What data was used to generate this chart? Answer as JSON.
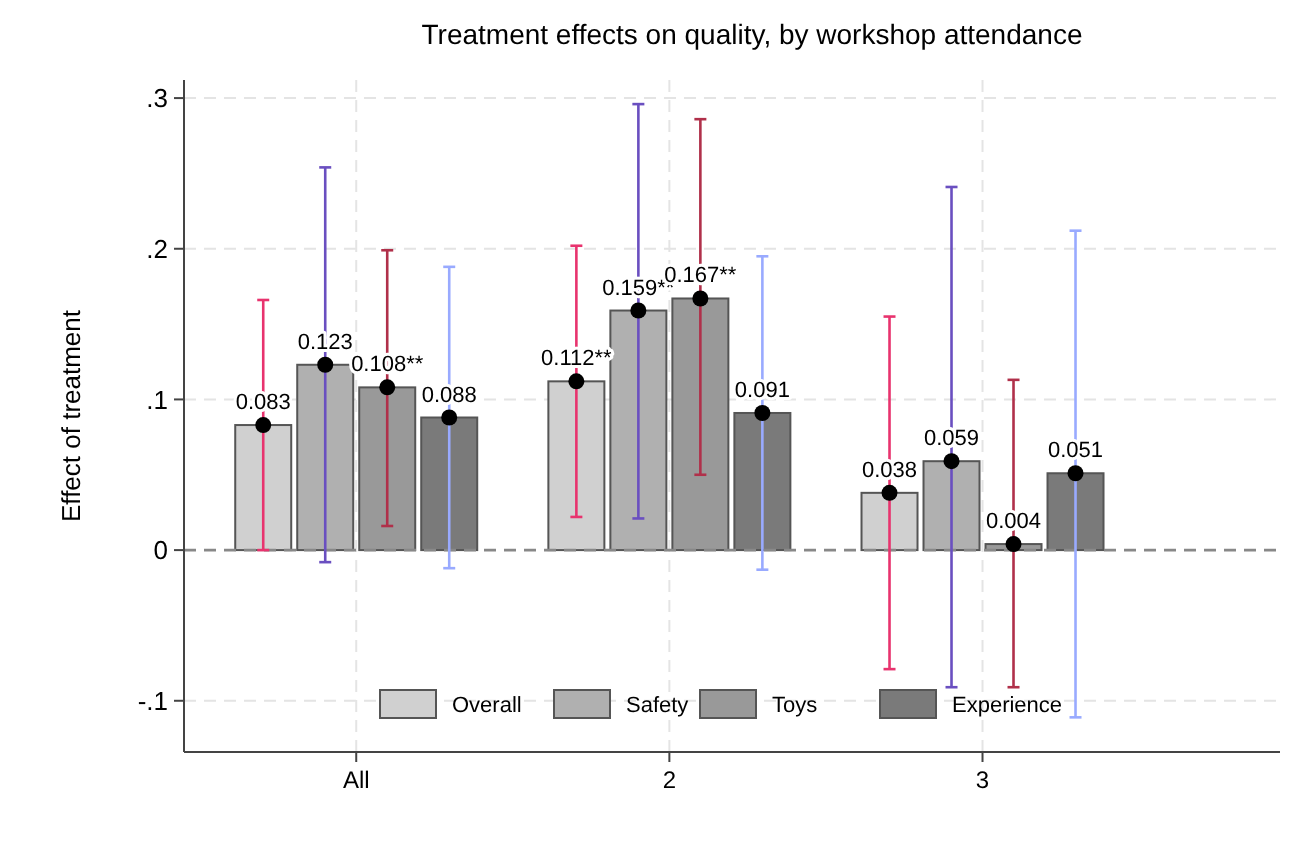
{
  "chart_data": {
    "type": "bar",
    "title": "Treatment effects on quality, by workshop attendance",
    "ylabel": "Effect of treatment",
    "categories": [
      "All",
      "2",
      "3"
    ],
    "series": [
      {
        "name": "Overall",
        "color": "#d0d0d0",
        "values": [
          0.083,
          0.112,
          0.038
        ],
        "value_labels": [
          "0.083",
          "0.112**",
          "0.038"
        ]
      },
      {
        "name": "Safety",
        "color": "#b0b0b0",
        "values": [
          0.123,
          0.159,
          0.059
        ],
        "value_labels": [
          "0.123",
          "0.159**",
          "0.059"
        ]
      },
      {
        "name": "Toys",
        "color": "#999999",
        "values": [
          0.108,
          0.167,
          0.004
        ],
        "value_labels": [
          "0.108**",
          "0.167**",
          "0.004"
        ]
      },
      {
        "name": "Experience",
        "color": "#7a7a7a",
        "values": [
          0.088,
          0.091,
          0.051
        ],
        "value_labels": [
          "0.088",
          "0.091",
          "0.051"
        ]
      },
      {
        "type": "scatter",
        "color": "#000000",
        "x": [
          "All",
          "2",
          "3"
        ],
        "values": [
          0.083,
          0.112,
          0.038
        ],
        "errors": [
          [
            0.0,
            0.166
          ],
          [
            0.022,
            0.202
          ],
          [
            -0.079,
            0.155
          ]
        ]
      },
      {
        "type": "scatter",
        "color": "#000000",
        "x": [
          "All",
          "2",
          "3"
        ],
        "values": [
          0.123,
          0.159,
          0.059
        ],
        "errors": [
          [
            -0.008,
            0.254
          ],
          [
            0.021,
            0.296
          ],
          [
            -0.091,
            0.241
          ]
        ]
      },
      {
        "type": "scatter",
        "color": "#000000",
        "x": [
          "All",
          "2",
          "3"
        ],
        "values": [
          0.108,
          0.167,
          0.004
        ],
        "errors": [
          [
            0.016,
            0.199
          ],
          [
            0.05,
            0.286
          ],
          [
            -0.091,
            0.113
          ]
        ]
      },
      {
        "type": "scatter",
        "color": "#000000",
        "x": [
          "All",
          "2",
          "3"
        ],
        "values": [
          0.088,
          0.091,
          0.051
        ],
        "errors": [
          [
            -0.012,
            0.188
          ],
          [
            -0.013,
            0.195
          ],
          [
            -0.111,
            0.212
          ]
        ]
      }
    ],
    "ylim": [
      -0.134,
      0.312
    ],
    "yticks": [
      {
        "value": -0.1,
        "label": "-.1"
      },
      {
        "value": 0,
        "label": "0"
      },
      {
        "value": 0.1,
        "label": ".1"
      },
      {
        "value": 0.2,
        "label": ".2"
      },
      {
        "value": 0.3,
        "label": ".3"
      }
    ],
    "ref_lines": [
      {
        "axis": "y",
        "value": 0,
        "color": "#888888",
        "line_style": "dashed"
      }
    ],
    "grid": true,
    "legend": "bottom",
    "marker": "circle"
  }
}
